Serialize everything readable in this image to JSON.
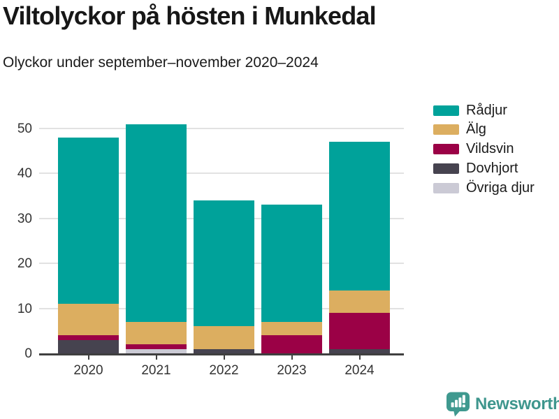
{
  "header": {
    "title": "Viltolyckor på hösten i Munkedal",
    "subtitle": "Olyckor under september–november 2020–2024"
  },
  "chart_data": {
    "type": "bar",
    "stacked": true,
    "title": "Viltolyckor på hösten i Munkedal",
    "subtitle": "Olyckor under september–november 2020–2024",
    "categories": [
      "2020",
      "2021",
      "2022",
      "2023",
      "2024"
    ],
    "series": [
      {
        "name": "Rådjur",
        "color": "#00a29a",
        "values": [
          37,
          44,
          28,
          26,
          33
        ]
      },
      {
        "name": "Älg",
        "color": "#dcae60",
        "values": [
          7,
          5,
          5,
          3,
          5
        ]
      },
      {
        "name": "Vildsvin",
        "color": "#9b0146",
        "values": [
          1,
          1,
          0,
          4,
          8
        ]
      },
      {
        "name": "Dovhjort",
        "color": "#46434f",
        "values": [
          3,
          0,
          1,
          0,
          1
        ]
      },
      {
        "name": "Övriga djur",
        "color": "#cbcad5",
        "values": [
          0,
          1,
          0,
          0,
          0
        ]
      }
    ],
    "stack_order_bottom_to_top": [
      "Övriga djur",
      "Dovhjort",
      "Vildsvin",
      "Älg",
      "Rådjur"
    ],
    "totals": [
      48,
      51,
      34,
      33,
      47
    ],
    "xlabel": "",
    "ylabel": "",
    "ylim": [
      0,
      51
    ],
    "yticks": [
      0,
      10,
      20,
      30,
      40,
      50
    ],
    "grid": true,
    "legend_position": "top-right"
  },
  "footer": {
    "brand": "Newsworthy"
  },
  "colors": {
    "accent_teal": "#00a29a",
    "gold": "#dcae60",
    "maroon": "#9b0146",
    "dark_slate": "#46434f",
    "light_gray": "#cbcad5",
    "brand_teal": "#3e968d",
    "axis": "#3f3f3f",
    "grid": "#e2e2e2"
  }
}
